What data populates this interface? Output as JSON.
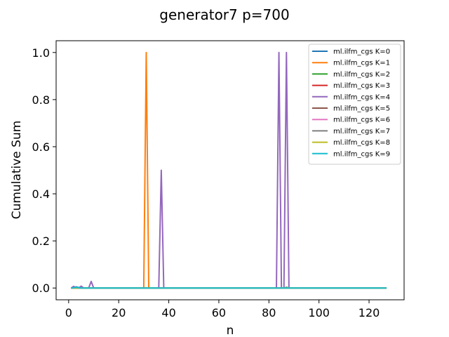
{
  "chart_data": {
    "type": "line",
    "title": "generator7 p=700",
    "xlabel": "n",
    "ylabel": "Cumulative Sum",
    "xlim": [
      -5,
      134
    ],
    "ylim": [
      -0.05,
      1.05
    ],
    "xticks": [
      0,
      20,
      40,
      60,
      80,
      100,
      120
    ],
    "yticks": [
      0.0,
      0.2,
      0.4,
      0.6,
      0.8,
      1.0
    ],
    "xtick_labels": [
      "0",
      "20",
      "40",
      "60",
      "80",
      "100",
      "120"
    ],
    "ytick_labels": [
      "0.0",
      "0.2",
      "0.4",
      "0.6",
      "0.8",
      "1.0"
    ],
    "grid": false,
    "legend_position": "top-right",
    "series": [
      {
        "name": "ml.ilfm_cgs K=0",
        "color": "#1f77b4",
        "points": [
          [
            1,
            0
          ],
          [
            3,
            0.005
          ],
          [
            5,
            0
          ],
          [
            127,
            0
          ]
        ]
      },
      {
        "name": "ml.ilfm_cgs K=1",
        "color": "#ff7f0e",
        "points": [
          [
            1,
            0
          ],
          [
            29,
            0
          ],
          [
            30,
            0
          ],
          [
            31,
            1.0
          ],
          [
            32,
            0
          ],
          [
            33,
            0
          ],
          [
            127,
            0
          ]
        ]
      },
      {
        "name": "ml.ilfm_cgs K=2",
        "color": "#2ca02c",
        "points": [
          [
            1,
            0
          ],
          [
            86,
            0
          ],
          [
            87,
            0.003
          ],
          [
            88,
            0
          ],
          [
            127,
            0
          ]
        ]
      },
      {
        "name": "ml.ilfm_cgs K=3",
        "color": "#d62728",
        "points": [
          [
            1,
            0
          ],
          [
            127,
            0
          ]
        ]
      },
      {
        "name": "ml.ilfm_cgs K=4",
        "color": "#9467bd",
        "points": [
          [
            1,
            0
          ],
          [
            2,
            0.007
          ],
          [
            3,
            0
          ],
          [
            4,
            0
          ],
          [
            5,
            0.008
          ],
          [
            6,
            0
          ],
          [
            8,
            0
          ],
          [
            9,
            0.028
          ],
          [
            10,
            0
          ],
          [
            35,
            0
          ],
          [
            36,
            0
          ],
          [
            37,
            0.5
          ],
          [
            38,
            0
          ],
          [
            83,
            0
          ],
          [
            84,
            1.0
          ],
          [
            85,
            0
          ],
          [
            86,
            0
          ],
          [
            87,
            1.0
          ],
          [
            88,
            0
          ],
          [
            127,
            0
          ]
        ]
      },
      {
        "name": "ml.ilfm_cgs K=5",
        "color": "#8c564b",
        "points": [
          [
            1,
            0
          ],
          [
            127,
            0
          ]
        ]
      },
      {
        "name": "ml.ilfm_cgs K=6",
        "color": "#e377c2",
        "points": [
          [
            1,
            0
          ],
          [
            127,
            0
          ]
        ]
      },
      {
        "name": "ml.ilfm_cgs K=7",
        "color": "#7f7f7f",
        "points": [
          [
            1,
            0
          ],
          [
            127,
            0
          ]
        ]
      },
      {
        "name": "ml.ilfm_cgs K=8",
        "color": "#bcbd22",
        "points": [
          [
            1,
            0
          ],
          [
            127,
            0
          ]
        ]
      },
      {
        "name": "ml.ilfm_cgs K=9",
        "color": "#17becf",
        "points": [
          [
            1,
            0
          ],
          [
            3,
            0.003
          ],
          [
            5,
            0
          ],
          [
            127,
            0
          ]
        ]
      }
    ]
  }
}
